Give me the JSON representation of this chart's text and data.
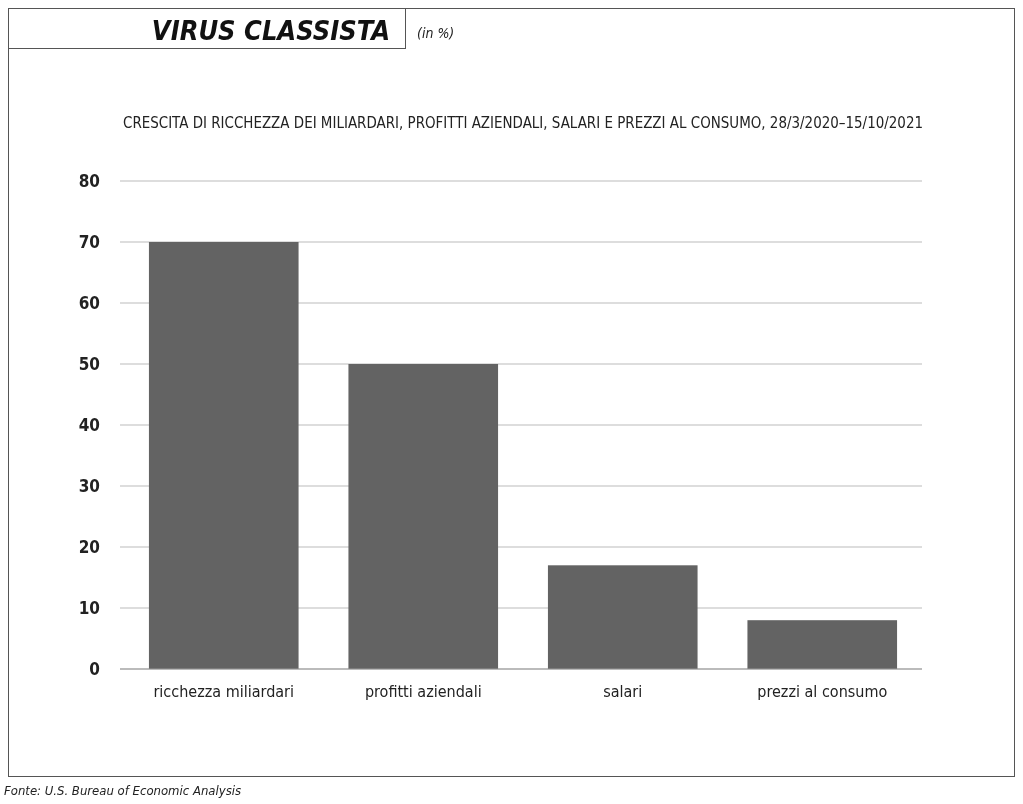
{
  "chart_data": {
    "type": "bar",
    "title": "VIRUS CLASSISTA",
    "subtitle": "CRESCITA DI RICCHEZZA DEI MILIARDARI, PROFITTI AZIENDALI, SALARI E PREZZI AL CONSUMO, 28/3/2020–15/10/2021",
    "categories": [
      "ricchezza miliardari",
      "profitti aziendali",
      "salari",
      "prezzi al consumo"
    ],
    "values": [
      70,
      50,
      17,
      8
    ],
    "color": "#636363",
    "ylim": [
      0,
      80
    ],
    "yticks": [
      0,
      10,
      20,
      30,
      40,
      50,
      60,
      70,
      80
    ],
    "grid": "y",
    "annotations": [
      "(in %)",
      "Fonte: U.S. Bureau of Economic Analysis"
    ]
  }
}
